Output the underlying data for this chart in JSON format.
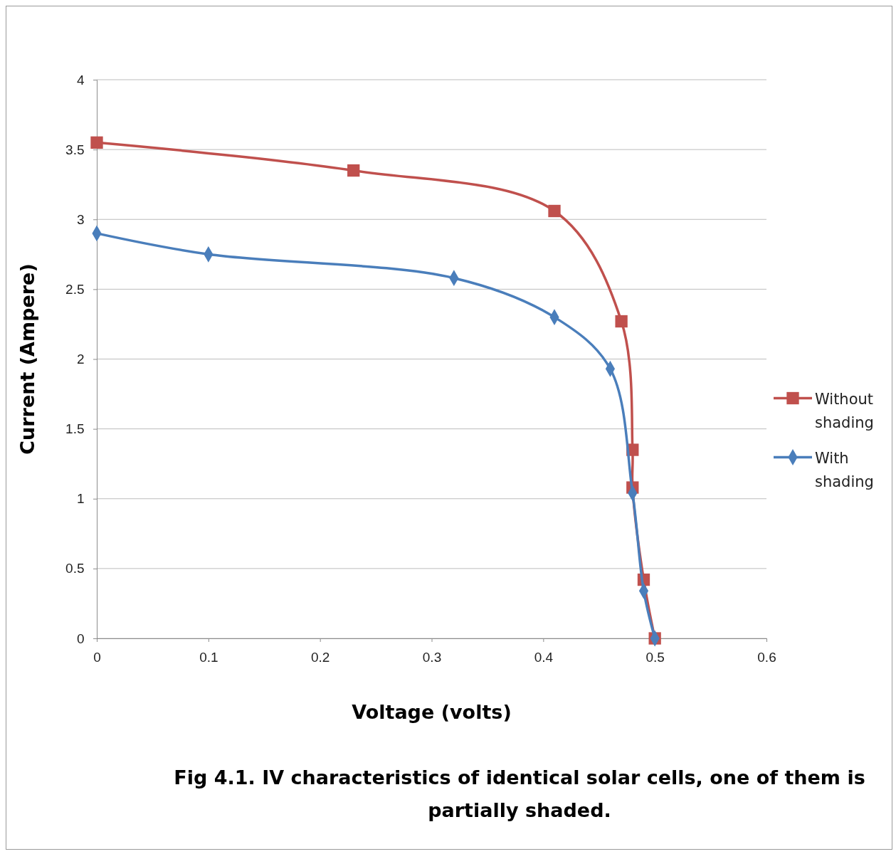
{
  "chart_data": {
    "type": "line",
    "xlabel": "Voltage (volts)",
    "ylabel": "Current (Ampere)",
    "annotations": [
      "Fig 4.1.  IV characteristics of identical  solar cells, one of them is partially shaded."
    ],
    "xlim": [
      0,
      0.6
    ],
    "xticks": [
      0,
      0.1,
      0.2,
      0.3,
      0.4,
      0.5,
      0.6
    ],
    "ylim": [
      0,
      4
    ],
    "yticks": [
      0,
      0.5,
      1,
      1.5,
      2,
      2.5,
      3,
      3.5,
      4
    ],
    "grid": "y",
    "legend": "right",
    "series": [
      {
        "name": "Without shading",
        "color": "#c0504d",
        "marker": "square",
        "x": [
          0,
          0.23,
          0.41,
          0.47,
          0.48,
          0.48,
          0.49,
          0.5
        ],
        "values": [
          3.55,
          3.35,
          3.06,
          2.27,
          1.35,
          1.08,
          0.42,
          0
        ]
      },
      {
        "name": "With shading",
        "color": "#4a7ebb",
        "marker": "diamond",
        "x": [
          0,
          0.1,
          0.32,
          0.41,
          0.46,
          0.48,
          0.49,
          0.5
        ],
        "values": [
          2.9,
          2.75,
          2.58,
          2.3,
          1.93,
          1.04,
          0.34,
          0
        ]
      }
    ]
  }
}
